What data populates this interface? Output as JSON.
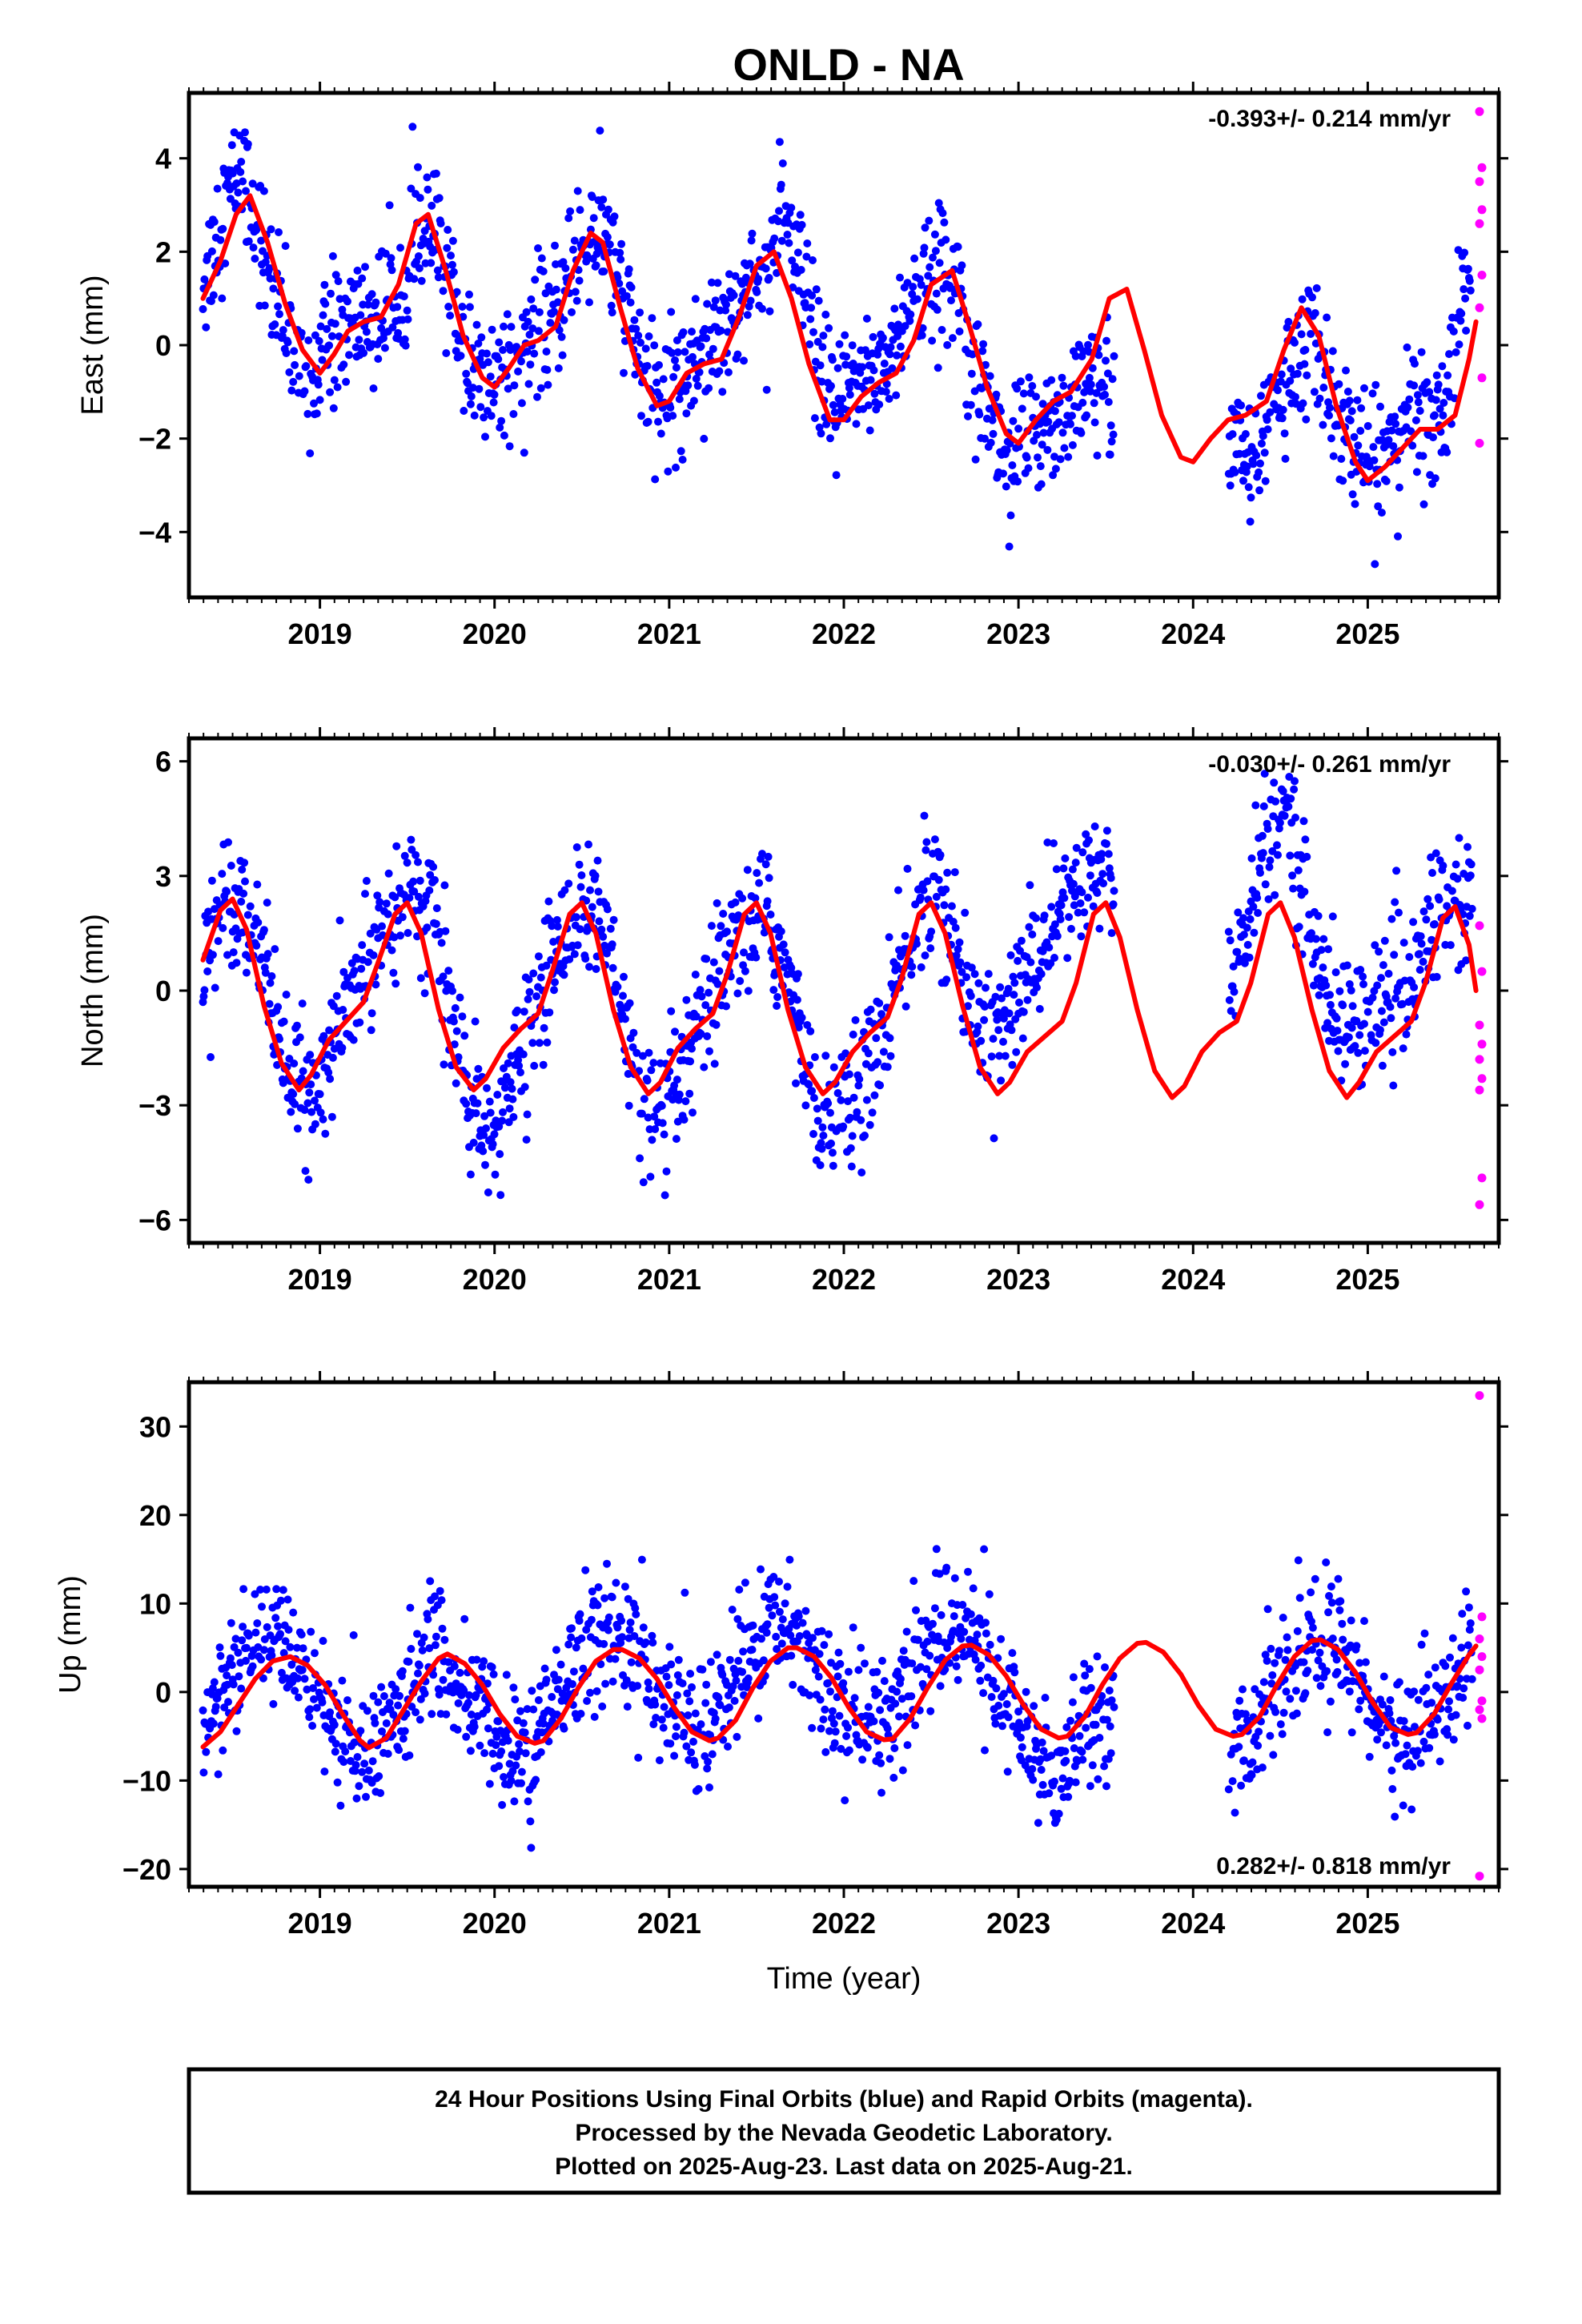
{
  "chart_data": {
    "title": "ONLD - NA",
    "xlabel": "Time (year)",
    "x_ticks": [
      "2019",
      "2020",
      "2021",
      "2022",
      "2023",
      "2024",
      "2025"
    ],
    "footer": [
      "24 Hour Positions Using Final Orbits (blue) and Rapid Orbits (magenta).",
      "Processed by the Nevada Geodetic Laboratory.",
      "Plotted on 2025-Aug-23. Last data on 2025-Aug-21."
    ],
    "colors": {
      "final_orbits": "#0000ff",
      "rapid_orbits": "#ff00ff",
      "model": "#ff0000"
    },
    "panels": [
      {
        "type": "scatter",
        "component": "east",
        "ylabel": "East (mm)",
        "rate": "-0.393+/- 0.214 mm/yr",
        "rate_position": "top-right",
        "xlim": [
          2018.25,
          2025.75
        ],
        "ylim": [
          -5.4,
          5.4
        ],
        "y_ticks": [
          -4,
          -2,
          0,
          2,
          4
        ],
        "data_range": [
          2018.33,
          2025.62
        ],
        "gaps": [
          [
            2023.55,
            2024.2
          ]
        ],
        "rapid_start": 2025.6,
        "scatter_x": [
          2018.35,
          2018.45,
          2018.55,
          2018.65,
          2018.75,
          2018.85,
          2018.95,
          2019.05,
          2019.15,
          2019.25,
          2019.35,
          2019.45,
          2019.55,
          2019.65,
          2019.75,
          2019.85,
          2019.95,
          2020.05,
          2020.15,
          2020.25,
          2020.35,
          2020.45,
          2020.55,
          2020.65,
          2020.75,
          2020.85,
          2020.95,
          2021.05,
          2021.15,
          2021.25,
          2021.35,
          2021.45,
          2021.55,
          2021.65,
          2021.75,
          2021.85,
          2021.95,
          2022.05,
          2022.15,
          2022.25,
          2022.35,
          2022.45,
          2022.55,
          2022.65,
          2022.75,
          2022.85,
          2022.95,
          2023.05,
          2023.15,
          2023.25,
          2023.35,
          2023.45,
          2024.25,
          2024.35,
          2024.45,
          2024.55,
          2024.65,
          2024.75,
          2024.85,
          2024.95,
          2025.05,
          2025.15,
          2025.25,
          2025.35,
          2025.45,
          2025.55
        ],
        "scatter_y": [
          1.5,
          3.0,
          3.8,
          2.5,
          0.8,
          -0.2,
          -0.8,
          0.2,
          0.4,
          0.6,
          0.6,
          1.2,
          2.2,
          2.4,
          1.2,
          -0.3,
          -0.9,
          -0.5,
          0.0,
          0.2,
          0.6,
          1.8,
          2.4,
          2.2,
          0.8,
          -0.6,
          -1.2,
          -0.8,
          -0.3,
          0.3,
          0.8,
          1.2,
          1.8,
          2.6,
          1.6,
          -0.4,
          -1.5,
          -0.8,
          -0.6,
          -0.3,
          0.6,
          1.2,
          1.6,
          1.4,
          0.0,
          -1.8,
          -2.4,
          -2.1,
          -1.6,
          -1.4,
          -1.2,
          -0.8,
          -2.2,
          -2.6,
          -1.2,
          -0.6,
          0.0,
          -0.5,
          -1.5,
          -2.4,
          -2.6,
          -2.0,
          -1.5,
          -1.6,
          -1.2,
          1.0
        ],
        "model_x": [
          2018.33,
          2018.43,
          2018.52,
          2018.6,
          2018.7,
          2018.8,
          2018.9,
          2019.0,
          2019.08,
          2019.16,
          2019.25,
          2019.35,
          2019.45,
          2019.55,
          2019.62,
          2019.72,
          2019.82,
          2019.93,
          2020.0,
          2020.08,
          2020.17,
          2020.25,
          2020.35,
          2020.45,
          2020.55,
          2020.62,
          2020.72,
          2020.82,
          2020.93,
          2021.0,
          2021.1,
          2021.2,
          2021.3,
          2021.4,
          2021.5,
          2021.6,
          2021.7,
          2021.8,
          2021.92,
          2022.0,
          2022.1,
          2022.2,
          2022.3,
          2022.4,
          2022.5,
          2022.62,
          2022.72,
          2022.82,
          2022.93,
          2023.0,
          2023.1,
          2023.2,
          2023.3,
          2023.42,
          2023.52,
          2023.62,
          2023.72,
          2023.82,
          2023.93,
          2024.0,
          2024.1,
          2024.2,
          2024.3,
          2024.42,
          2024.52,
          2024.62,
          2024.72,
          2024.82,
          2024.93,
          2025.0,
          2025.1,
          2025.2,
          2025.3,
          2025.4,
          2025.5,
          2025.58,
          2025.62
        ],
        "model_y": [
          1.0,
          1.8,
          2.8,
          3.2,
          2.2,
          0.9,
          -0.1,
          -0.6,
          -0.2,
          0.3,
          0.5,
          0.6,
          1.3,
          2.6,
          2.8,
          1.6,
          0.2,
          -0.7,
          -0.9,
          -0.5,
          0.0,
          0.1,
          0.4,
          1.6,
          2.4,
          2.2,
          0.8,
          -0.5,
          -1.3,
          -1.2,
          -0.6,
          -0.4,
          -0.3,
          0.6,
          1.7,
          2.0,
          1.0,
          -0.4,
          -1.6,
          -1.6,
          -1.1,
          -0.8,
          -0.6,
          0.1,
          1.3,
          1.6,
          0.4,
          -0.9,
          -1.9,
          -2.1,
          -1.6,
          -1.2,
          -1.0,
          -0.3,
          1.0,
          1.2,
          -0.1,
          -1.5,
          -2.4,
          -2.5,
          -2.0,
          -1.6,
          -1.5,
          -1.2,
          -0.1,
          0.8,
          0.2,
          -1.3,
          -2.5,
          -2.9,
          -2.6,
          -2.2,
          -1.8,
          -1.8,
          -1.5,
          -0.3,
          0.5
        ],
        "rapid_y": [
          5.0,
          3.8,
          3.5,
          2.9,
          2.6,
          1.5,
          0.8,
          -0.7,
          -2.1
        ]
      },
      {
        "type": "scatter",
        "component": "north",
        "ylabel": "North (mm)",
        "rate": "-0.030+/- 0.261 mm/yr",
        "rate_position": "top-right",
        "xlim": [
          2018.25,
          2025.75
        ],
        "ylim": [
          -6.6,
          6.6
        ],
        "y_ticks": [
          -6,
          -3,
          0,
          3,
          6
        ],
        "data_range": [
          2018.33,
          2025.62
        ],
        "gaps": [
          [
            2023.55,
            2024.2
          ]
        ],
        "rapid_start": 2025.6,
        "scatter_x": [
          2018.35,
          2018.45,
          2018.55,
          2018.65,
          2018.75,
          2018.85,
          2018.95,
          2019.05,
          2019.15,
          2019.25,
          2019.35,
          2019.45,
          2019.55,
          2019.65,
          2019.75,
          2019.85,
          2019.95,
          2020.05,
          2020.15,
          2020.25,
          2020.35,
          2020.45,
          2020.55,
          2020.65,
          2020.75,
          2020.85,
          2020.95,
          2021.05,
          2021.15,
          2021.25,
          2021.35,
          2021.45,
          2021.55,
          2021.65,
          2021.75,
          2021.85,
          2021.95,
          2022.05,
          2022.15,
          2022.25,
          2022.35,
          2022.45,
          2022.55,
          2022.65,
          2022.75,
          2022.85,
          2022.95,
          2023.05,
          2023.15,
          2023.25,
          2023.35,
          2023.45,
          2024.25,
          2024.35,
          2024.45,
          2024.55,
          2024.65,
          2024.75,
          2024.85,
          2024.95,
          2025.05,
          2025.15,
          2025.25,
          2025.35,
          2025.45,
          2025.55
        ],
        "scatter_y": [
          1.2,
          2.4,
          2.6,
          1.2,
          -0.8,
          -2.4,
          -3.0,
          -1.8,
          -0.6,
          0.4,
          1.8,
          2.4,
          2.6,
          1.8,
          -0.6,
          -2.8,
          -4.2,
          -3.2,
          -1.6,
          -0.4,
          1.0,
          2.2,
          2.2,
          1.2,
          -1.2,
          -2.8,
          -3.6,
          -2.6,
          -1.4,
          -0.2,
          0.8,
          1.8,
          2.0,
          0.8,
          -1.4,
          -2.8,
          -3.4,
          -3.0,
          -2.0,
          -0.6,
          0.8,
          2.4,
          2.6,
          0.8,
          -0.6,
          -1.0,
          -0.6,
          0.4,
          1.4,
          2.2,
          2.6,
          3.0,
          0.6,
          2.6,
          4.2,
          4.8,
          2.2,
          0.2,
          -1.0,
          -0.8,
          -0.4,
          -0.2,
          0.2,
          1.6,
          2.6,
          2.2
        ],
        "model_x": [
          2018.33,
          2018.43,
          2018.5,
          2018.58,
          2018.68,
          2018.78,
          2018.88,
          2018.95,
          2019.05,
          2019.15,
          2019.25,
          2019.33,
          2019.43,
          2019.5,
          2019.58,
          2019.68,
          2019.78,
          2019.88,
          2019.95,
          2020.05,
          2020.15,
          2020.25,
          2020.33,
          2020.43,
          2020.5,
          2020.58,
          2020.68,
          2020.78,
          2020.88,
          2020.95,
          2021.05,
          2021.15,
          2021.25,
          2021.33,
          2021.43,
          2021.5,
          2021.58,
          2021.68,
          2021.78,
          2021.88,
          2021.95,
          2022.05,
          2022.15,
          2022.25,
          2022.33,
          2022.43,
          2022.5,
          2022.58,
          2022.68,
          2022.78,
          2022.88,
          2022.95,
          2023.05,
          2023.15,
          2023.25,
          2023.33,
          2023.43,
          2023.5,
          2023.58,
          2023.68,
          2023.78,
          2023.88,
          2023.95,
          2024.05,
          2024.15,
          2024.25,
          2024.33,
          2024.43,
          2024.5,
          2024.58,
          2024.68,
          2024.78,
          2024.88,
          2024.95,
          2025.05,
          2025.15,
          2025.25,
          2025.33,
          2025.43,
          2025.5,
          2025.58,
          2025.62
        ],
        "model_y": [
          0.8,
          2.1,
          2.4,
          1.6,
          -0.4,
          -1.9,
          -2.6,
          -2.2,
          -1.3,
          -0.8,
          -0.3,
          0.7,
          2.0,
          2.3,
          1.5,
          -0.5,
          -2.0,
          -2.6,
          -2.3,
          -1.5,
          -1.0,
          -0.6,
          0.5,
          2.0,
          2.3,
          1.5,
          -0.5,
          -2.0,
          -2.7,
          -2.4,
          -1.5,
          -1.0,
          -0.6,
          0.4,
          2.0,
          2.3,
          1.5,
          -0.5,
          -2.0,
          -2.7,
          -2.4,
          -1.6,
          -1.1,
          -0.7,
          0.3,
          2.0,
          2.3,
          1.5,
          -0.4,
          -2.0,
          -2.7,
          -2.4,
          -1.6,
          -1.2,
          -0.8,
          0.2,
          2.0,
          2.3,
          1.4,
          -0.5,
          -2.1,
          -2.8,
          -2.5,
          -1.6,
          -1.1,
          -0.8,
          0.2,
          2.0,
          2.3,
          1.4,
          -0.5,
          -2.1,
          -2.8,
          -2.4,
          -1.6,
          -1.2,
          -0.8,
          0.2,
          1.9,
          2.2,
          1.2,
          0.0
        ],
        "rapid_y": [
          1.7,
          0.5,
          -0.9,
          -1.4,
          -1.8,
          -2.3,
          -2.6,
          -4.9,
          -5.6
        ]
      },
      {
        "type": "scatter",
        "component": "up",
        "ylabel": "Up (mm)",
        "rate": "0.282+/- 0.818 mm/yr",
        "rate_position": "bottom-right",
        "xlim": [
          2018.25,
          2025.75
        ],
        "ylim": [
          -22,
          35
        ],
        "y_ticks": [
          -20,
          -10,
          0,
          10,
          20,
          30
        ],
        "data_range": [
          2018.33,
          2025.62
        ],
        "gaps": [
          [
            2023.55,
            2024.2
          ]
        ],
        "rapid_start": 2025.6,
        "scatter_x": [
          2018.35,
          2018.45,
          2018.55,
          2018.65,
          2018.75,
          2018.85,
          2018.95,
          2019.05,
          2019.15,
          2019.25,
          2019.35,
          2019.45,
          2019.55,
          2019.65,
          2019.75,
          2019.85,
          2019.95,
          2020.05,
          2020.15,
          2020.25,
          2020.35,
          2020.45,
          2020.55,
          2020.65,
          2020.75,
          2020.85,
          2020.95,
          2021.05,
          2021.15,
          2021.25,
          2021.35,
          2021.45,
          2021.55,
          2021.65,
          2021.75,
          2021.85,
          2021.95,
          2022.05,
          2022.15,
          2022.25,
          2022.35,
          2022.45,
          2022.55,
          2022.65,
          2022.75,
          2022.85,
          2022.95,
          2023.05,
          2023.15,
          2023.25,
          2023.35,
          2023.45,
          2024.25,
          2024.35,
          2024.45,
          2024.55,
          2024.65,
          2024.75,
          2024.85,
          2024.95,
          2025.05,
          2025.15,
          2025.25,
          2025.35,
          2025.45,
          2025.55
        ],
        "scatter_y": [
          -4,
          0,
          3,
          5,
          6,
          4,
          2,
          -2,
          -6,
          -8,
          -5,
          -2,
          2,
          4,
          2,
          -1,
          -3,
          -6,
          -8,
          -5,
          -2,
          3,
          6,
          8,
          6,
          3,
          0,
          -2,
          -4,
          -3,
          0,
          4,
          7,
          8,
          6,
          3,
          0,
          -3,
          -4,
          -2,
          1,
          4,
          7,
          8,
          6,
          2,
          -2,
          -6,
          -9,
          -8,
          -4,
          -1,
          -6,
          -4,
          -1,
          2,
          4,
          6,
          5,
          2,
          -2,
          -5,
          -6,
          -3,
          0,
          4
        ],
        "model_x": [
          2018.33,
          2018.43,
          2018.53,
          2018.63,
          2018.73,
          2018.83,
          2018.93,
          2019.03,
          2019.13,
          2019.23,
          2019.28,
          2019.38,
          2019.48,
          2019.58,
          2019.68,
          2019.73,
          2019.83,
          2019.93,
          2020.03,
          2020.13,
          2020.23,
          2020.28,
          2020.38,
          2020.48,
          2020.58,
          2020.68,
          2020.73,
          2020.83,
          2020.93,
          2021.03,
          2021.13,
          2021.23,
          2021.28,
          2021.38,
          2021.48,
          2021.58,
          2021.68,
          2021.73,
          2021.83,
          2021.93,
          2022.03,
          2022.13,
          2022.23,
          2022.28,
          2022.38,
          2022.48,
          2022.58,
          2022.68,
          2022.73,
          2022.83,
          2022.93,
          2023.03,
          2023.13,
          2023.23,
          2023.28,
          2023.38,
          2023.48,
          2023.58,
          2023.68,
          2023.73,
          2023.83,
          2023.93,
          2024.03,
          2024.13,
          2024.23,
          2024.28,
          2024.38,
          2024.48,
          2024.58,
          2024.68,
          2024.73,
          2024.83,
          2024.93,
          2025.03,
          2025.13,
          2025.23,
          2025.28,
          2025.38,
          2025.48,
          2025.58,
          2025.62
        ],
        "model_y": [
          -6.2,
          -4.5,
          -1.5,
          1.5,
          3.5,
          4.0,
          3.0,
          0.8,
          -2.5,
          -5.5,
          -6.3,
          -5.2,
          -2.0,
          1.2,
          3.8,
          4.3,
          3.2,
          0.8,
          -2.5,
          -5.0,
          -5.8,
          -5.5,
          -3.0,
          0.5,
          3.5,
          4.8,
          4.8,
          3.8,
          1.5,
          -1.8,
          -4.5,
          -5.5,
          -5.2,
          -3.2,
          0.5,
          3.5,
          5.0,
          5.0,
          4.0,
          1.6,
          -1.8,
          -4.5,
          -5.4,
          -5.3,
          -3.0,
          0.5,
          3.6,
          5.2,
          5.3,
          4.2,
          1.8,
          -1.5,
          -4.2,
          -5.2,
          -5.0,
          -2.8,
          0.8,
          3.8,
          5.5,
          5.6,
          4.5,
          2.0,
          -1.5,
          -4.2,
          -5.0,
          -4.8,
          -2.8,
          0.8,
          4.0,
          5.8,
          5.9,
          4.8,
          2.2,
          -1.2,
          -4.0,
          -4.8,
          -4.6,
          -2.5,
          1.0,
          4.2,
          5.2
        ],
        "rapid_y": [
          33.5,
          8.5,
          6.0,
          4.0,
          2.5,
          -1.0,
          -2.0,
          -3.0,
          -20.8
        ]
      }
    ]
  }
}
